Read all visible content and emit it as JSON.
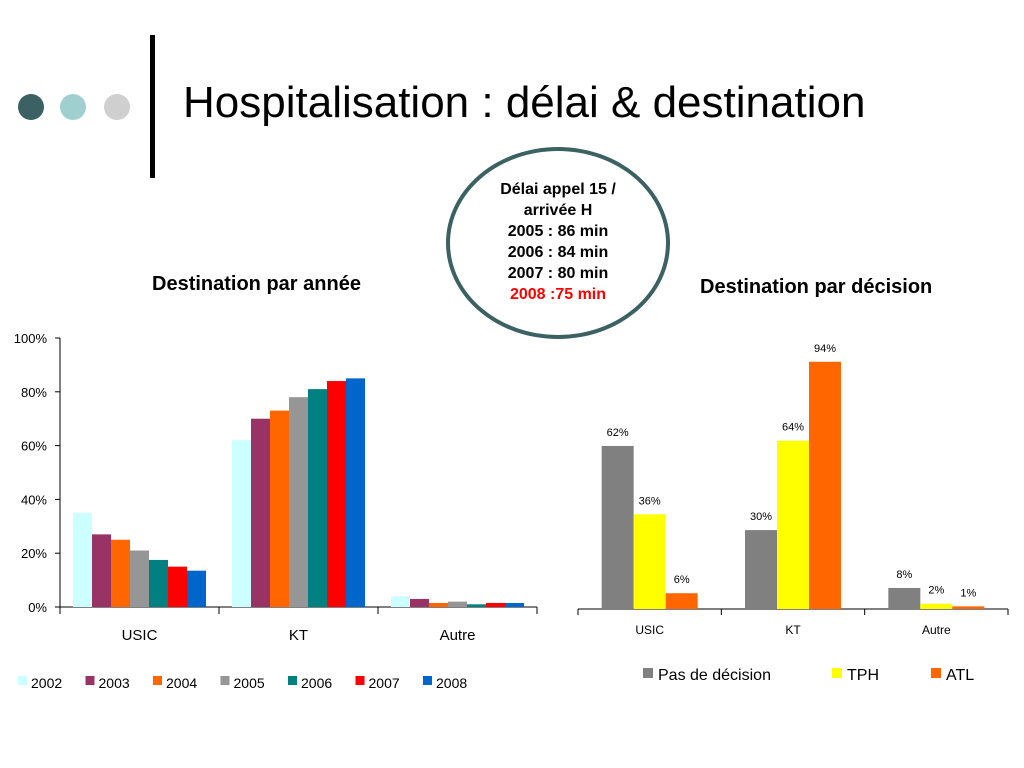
{
  "header": {
    "title": "Hospitalisation : délai & destination",
    "dot_colors": [
      "#3b6162",
      "#9fcfcf",
      "#cfcfcf"
    ]
  },
  "delay_box": {
    "lines": [
      "Délai appel 15 /",
      "arrivée H",
      "2005 : 86 min",
      "2006 : 84 min",
      "2007 : 80 min"
    ],
    "highlight": "2008 :75 min",
    "highlight_color": "#ff0000"
  },
  "chart_data": [
    {
      "type": "bar",
      "title": "Destination par année",
      "categories": [
        "USIC",
        "KT",
        "Autre"
      ],
      "ylim": [
        0,
        100
      ],
      "yticks": [
        "0%",
        "20%",
        "40%",
        "60%",
        "80%",
        "100%"
      ],
      "legend_position": "bottom",
      "series": [
        {
          "name": "2002",
          "color": "#ccffff",
          "values": [
            35,
            62,
            4
          ]
        },
        {
          "name": "2003",
          "color": "#993366",
          "values": [
            27,
            70,
            3
          ]
        },
        {
          "name": "2004",
          "color": "#ff6600",
          "values": [
            25,
            73,
            1.5
          ]
        },
        {
          "name": "2005",
          "color": "#969696",
          "values": [
            21,
            78,
            2
          ]
        },
        {
          "name": "2006",
          "color": "#008080",
          "values": [
            17.5,
            81,
            1
          ]
        },
        {
          "name": "2007",
          "color": "#ff0000",
          "values": [
            15,
            84,
            1.5
          ]
        },
        {
          "name": "2008",
          "color": "#0066cc",
          "values": [
            13.5,
            85,
            1.5
          ]
        }
      ]
    },
    {
      "type": "bar",
      "title": "Destination par décision",
      "categories": [
        "USIC",
        "KT",
        "Autre"
      ],
      "ylim": [
        0,
        100
      ],
      "legend_position": "bottom",
      "series": [
        {
          "name": "Pas de décision",
          "color": "#808080",
          "values": [
            62,
            30,
            8
          ],
          "labels": [
            "62%",
            "30%",
            "8%"
          ]
        },
        {
          "name": "TPH",
          "color": "#ffff00",
          "values": [
            36,
            64,
            2
          ],
          "labels": [
            "36%",
            "64%",
            "2%"
          ]
        },
        {
          "name": "ATL",
          "color": "#ff6600",
          "values": [
            6,
            94,
            1
          ],
          "labels": [
            "6%",
            "94%",
            "1%"
          ]
        }
      ]
    }
  ]
}
